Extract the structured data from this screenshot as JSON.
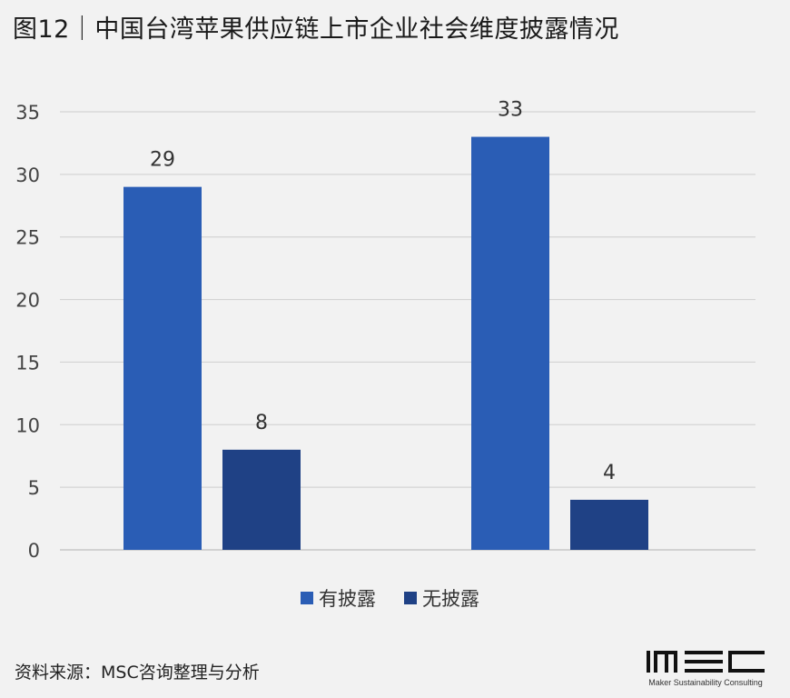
{
  "header": {
    "title": "图12｜中国台湾苹果供应链上市企业社会维度披露情况"
  },
  "chart_data": {
    "type": "bar",
    "categories": [
      "",
      ""
    ],
    "series": [
      {
        "name": "有披露",
        "values": [
          29,
          33
        ],
        "color": "#2a5db5"
      },
      {
        "name": "无披露",
        "values": [
          8,
          4
        ],
        "color": "#1f4185"
      }
    ],
    "ylim": [
      0,
      35
    ],
    "yticks": [
      "0",
      "5",
      "10",
      "15",
      "20",
      "25",
      "30",
      "35"
    ],
    "grid": true,
    "legend_position": "bottom",
    "data_labels": true,
    "xlabel": "",
    "ylabel": ""
  },
  "footer": {
    "source": "资料来源：MSC咨询整理与分析",
    "logo_text": "MSC",
    "logo_subtitle": "Maker Sustainability Consulting"
  }
}
